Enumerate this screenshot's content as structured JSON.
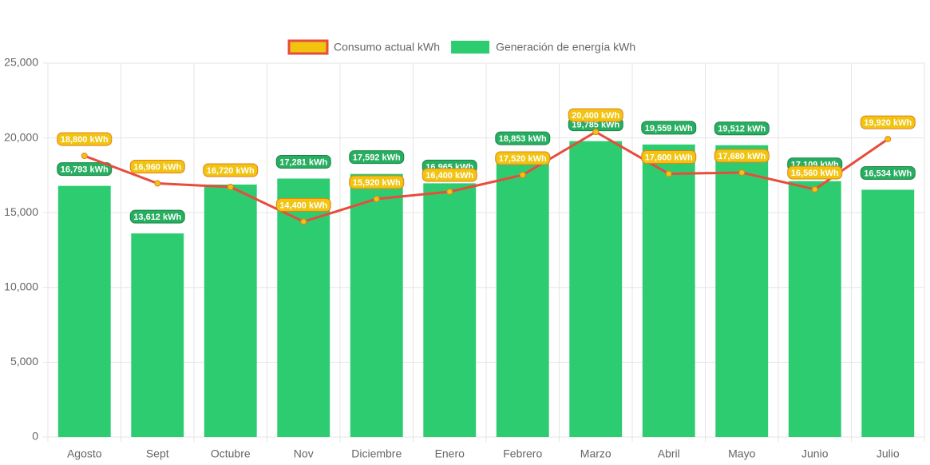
{
  "chart_data": {
    "type": "bar",
    "categories": [
      "Agosto",
      "Sept",
      "Octubre",
      "Nov",
      "Diciembre",
      "Enero",
      "Febrero",
      "Marzo",
      "Abril",
      "Mayo",
      "Junio",
      "Julio"
    ],
    "series": [
      {
        "name": "Consumo actual kWh",
        "type": "line",
        "color": "#e74c3c",
        "fill_color": "#f1c40f",
        "label_border": "#e67e22",
        "values": [
          18800,
          16960,
          16720,
          14400,
          15920,
          16400,
          17520,
          20400,
          17600,
          17680,
          16560,
          19920
        ],
        "value_labels": [
          "18,800 kWh",
          "16,960 kWh",
          "16,720 kWh",
          "14,400 kWh",
          "15,920 kWh",
          "16,400 kWh",
          "17,520 kWh",
          "20,400 kWh",
          "17,600 kWh",
          "17,680 kWh",
          "16,560 kWh",
          "19,920 kWh"
        ]
      },
      {
        "name": "Generación de energía kWh",
        "type": "bar",
        "color": "#2ecc71",
        "label_fill": "#27ae60",
        "label_border": "#1e8449",
        "values": [
          16793,
          13612,
          16880,
          17281,
          17592,
          16965,
          18853,
          19785,
          19559,
          19512,
          17109,
          16534
        ],
        "value_labels": [
          "16,793 kWh",
          "13,612 kWh",
          null,
          "17,281 kWh",
          "17,592 kWh",
          "16,965 kWh",
          "18,853 kWh",
          "19,785 kWh",
          "19,559 kWh",
          "19,512 kWh",
          "17,109 kWh",
          "16,534 kWh"
        ]
      }
    ],
    "ylim": [
      0,
      25000
    ],
    "yticks": [
      0,
      {
        "value": 5000,
        "label": "5,000"
      },
      {
        "value": 10000,
        "label": "10,000"
      },
      {
        "value": 15000,
        "label": "15,000"
      },
      {
        "value": 20000,
        "label": "20,000"
      },
      {
        "value": 25000,
        "label": "25,000"
      }
    ],
    "grid": true
  }
}
